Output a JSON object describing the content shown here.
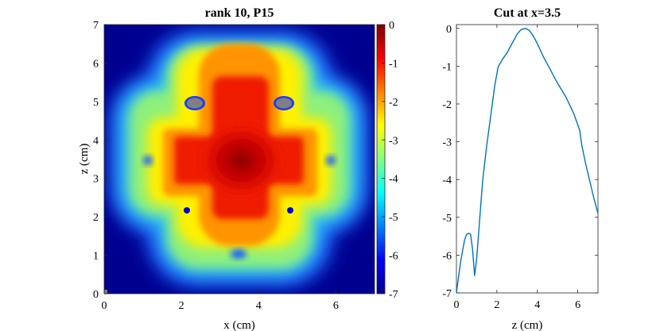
{
  "chart_data": [
    {
      "type": "heatmap",
      "title": "rank 10, P15",
      "xlabel": "x (cm)",
      "ylabel": "z (cm)",
      "xlim": [
        0,
        7
      ],
      "ylim": [
        0,
        7
      ],
      "xticks": [
        "0",
        "2",
        "4",
        "6"
      ],
      "yticks": [
        "0",
        "1",
        "2",
        "3",
        "4",
        "5",
        "6",
        "7"
      ],
      "colorbar": {
        "range": [
          -7,
          0
        ],
        "ticks": [
          "0",
          "-1",
          "-2",
          "-3",
          "-4",
          "-5",
          "-6",
          "-7"
        ],
        "colormap": "jet"
      }
    },
    {
      "type": "line",
      "title": "Cut at x=3.5",
      "xlabel": "z (cm)",
      "ylabel": "",
      "xlim": [
        0,
        7
      ],
      "ylim": [
        -7,
        0.1
      ],
      "xticks": [
        "0",
        "2",
        "4",
        "6"
      ],
      "yticks": [
        "0",
        "-1",
        "-2",
        "-3",
        "-4",
        "-5",
        "-6",
        "-7"
      ],
      "color": "#0072BD",
      "series": [
        {
          "x": [
            0.0,
            0.1,
            0.2,
            0.3,
            0.4,
            0.5,
            0.6,
            0.7,
            0.8,
            0.85,
            0.9,
            1.0,
            1.1,
            1.2,
            1.3,
            1.5,
            1.7,
            1.9,
            2.0,
            2.05,
            2.1,
            2.3,
            2.5,
            2.7,
            3.0,
            3.2,
            3.4,
            3.6,
            3.8,
            4.0,
            4.3,
            4.6,
            5.0,
            5.4,
            5.8,
            6.1,
            6.2,
            6.4,
            6.6,
            6.8,
            7.0
          ],
          "y": [
            -7.0,
            -6.6,
            -6.2,
            -5.9,
            -5.6,
            -5.45,
            -5.42,
            -5.45,
            -5.85,
            -6.2,
            -6.55,
            -6.1,
            -5.4,
            -4.7,
            -4.0,
            -3.1,
            -2.3,
            -1.5,
            -1.2,
            -1.05,
            -0.98,
            -0.8,
            -0.65,
            -0.45,
            -0.15,
            -0.03,
            0.0,
            -0.05,
            -0.2,
            -0.4,
            -0.75,
            -1.05,
            -1.45,
            -1.8,
            -2.25,
            -2.7,
            -3.1,
            -3.6,
            -4.05,
            -4.5,
            -4.9
          ]
        }
      ]
    }
  ]
}
